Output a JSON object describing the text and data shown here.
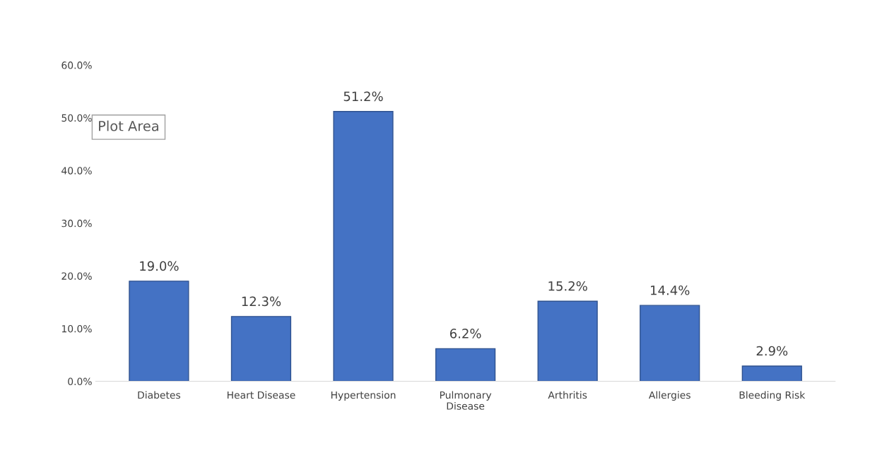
{
  "chart_data": {
    "type": "bar",
    "categories": [
      "Diabetes",
      "Heart Disease",
      "Hypertension",
      "Pulmonary Disease",
      "Arthritis",
      "Allergies",
      "Bleeding Risk"
    ],
    "values": [
      19.0,
      12.3,
      51.2,
      6.2,
      15.2,
      14.4,
      2.9
    ],
    "value_labels": [
      "19.0%",
      "12.3%",
      "51.2%",
      "6.2%",
      "15.2%",
      "14.4%",
      "2.9%"
    ],
    "color": "#4472c4",
    "ylim": [
      0,
      60
    ],
    "yticks": [
      {
        "value": 0,
        "label": "0.0%"
      },
      {
        "value": 10,
        "label": "10.0%"
      },
      {
        "value": 20,
        "label": "20.0%"
      },
      {
        "value": 30,
        "label": "30.0%"
      },
      {
        "value": 40,
        "label": "40.0%"
      },
      {
        "value": 50,
        "label": "50.0%"
      },
      {
        "value": 60,
        "label": "60.0%"
      }
    ],
    "annotations": [
      "Plot Area"
    ],
    "grid": false
  }
}
